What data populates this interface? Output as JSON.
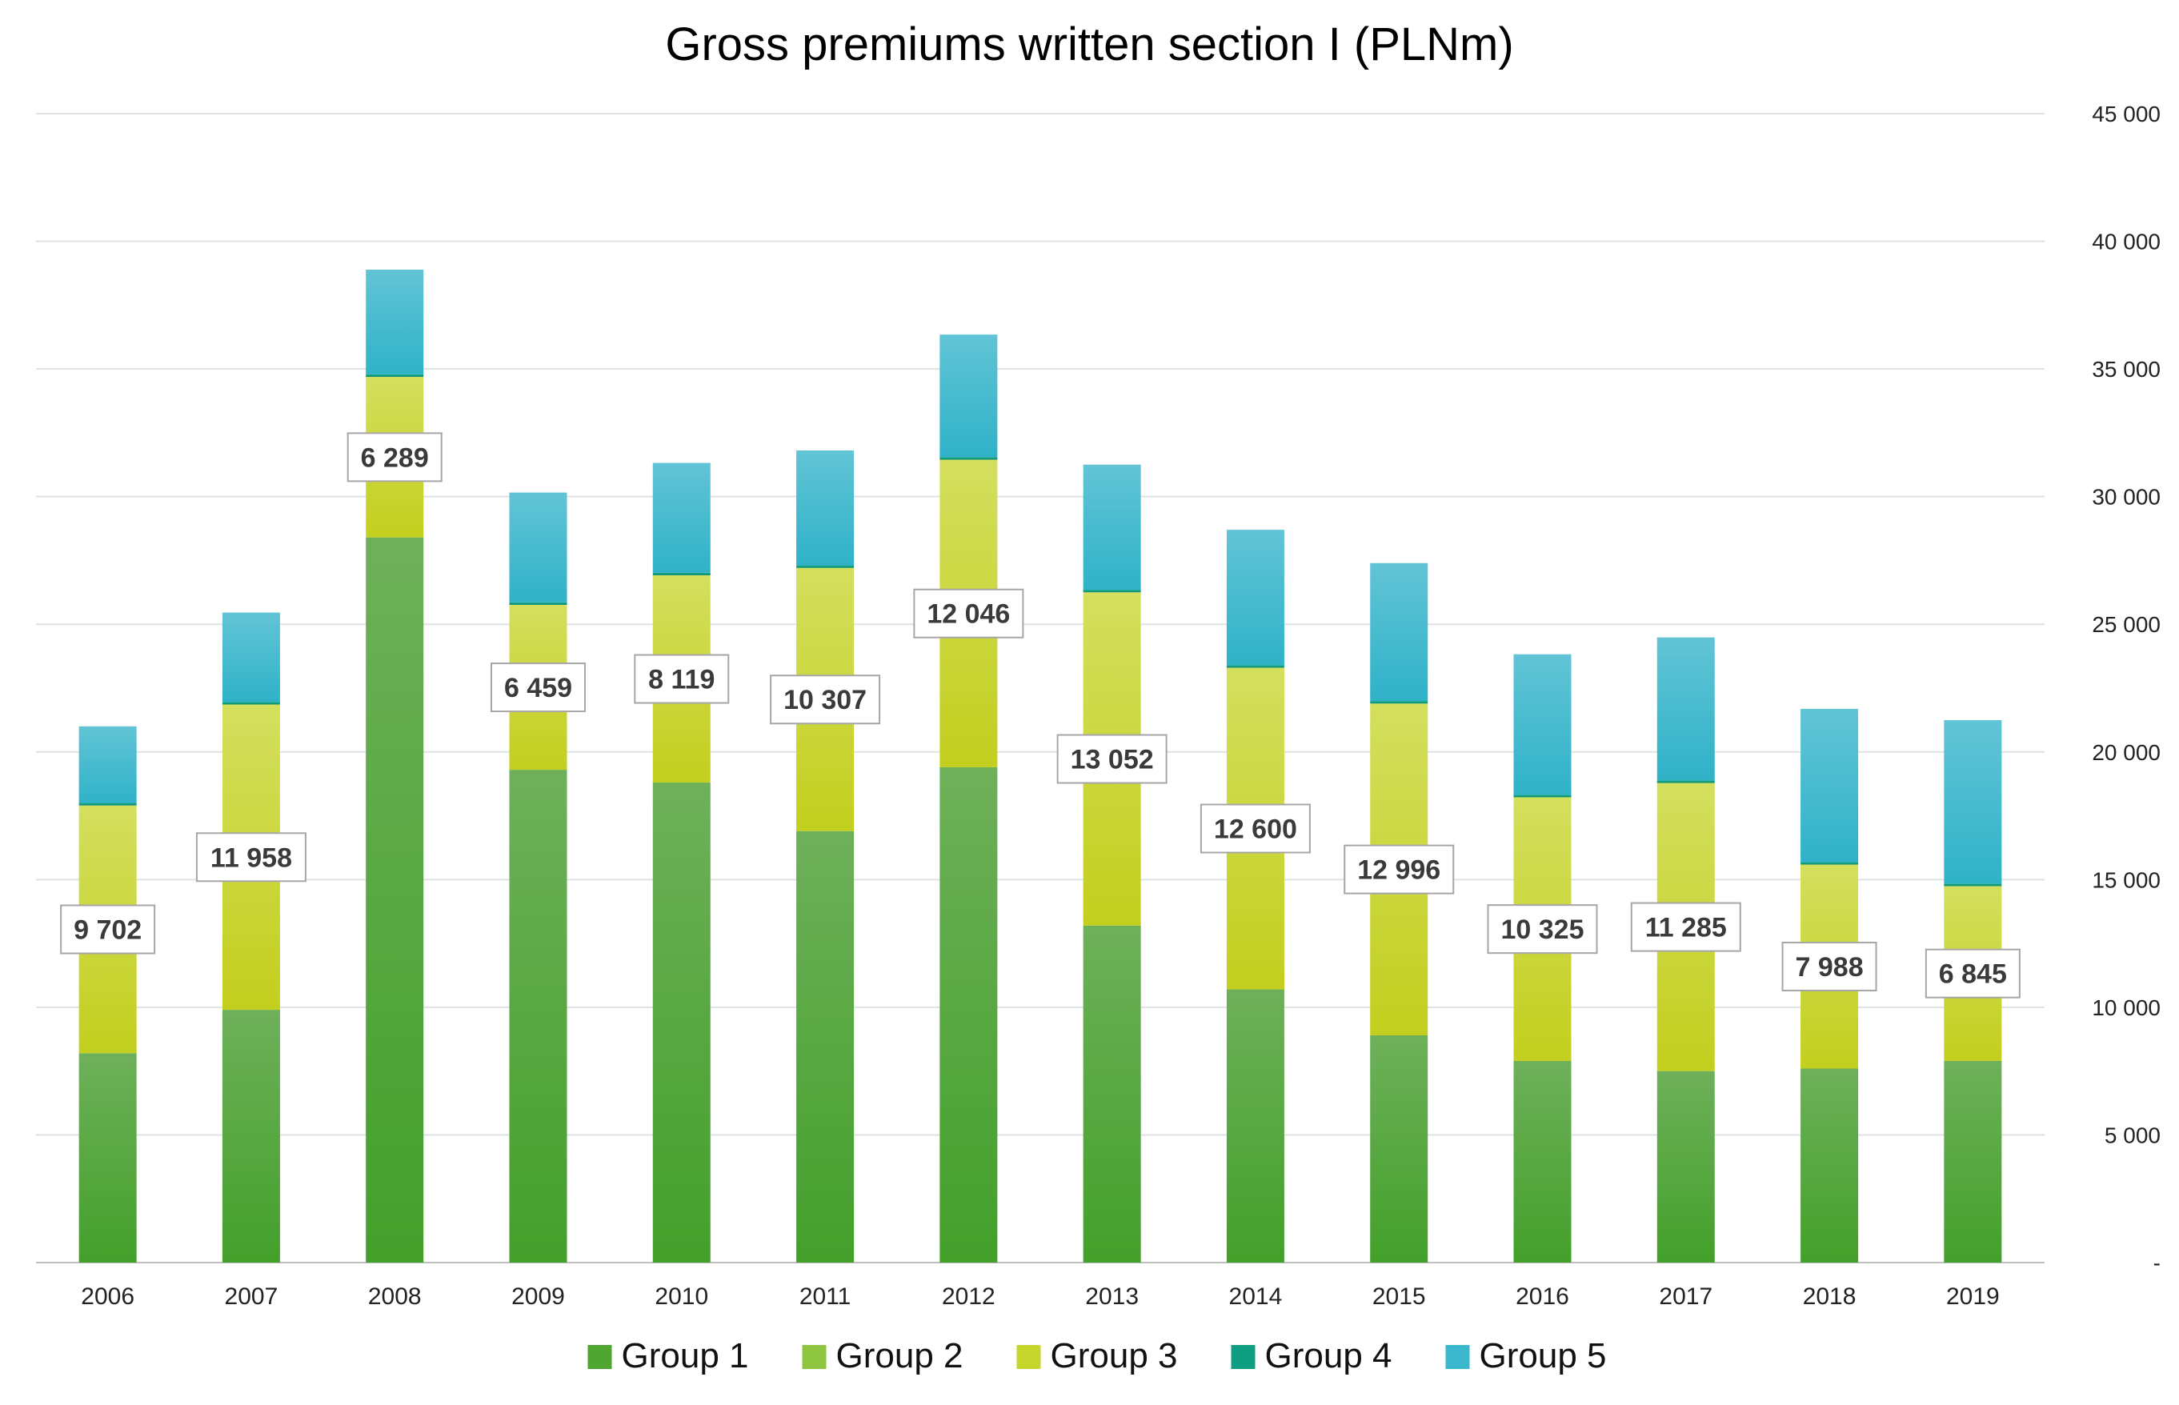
{
  "chart_data": {
    "type": "bar",
    "stacked": true,
    "title": "Gross premiums written section I (PLNm)",
    "categories": [
      "2006",
      "2007",
      "2008",
      "2009",
      "2010",
      "2011",
      "2012",
      "2013",
      "2014",
      "2015",
      "2016",
      "2017",
      "2018",
      "2019"
    ],
    "series": [
      {
        "name": "Group 1",
        "color": "#4ea52f",
        "values": [
          8200,
          9900,
          28400,
          19300,
          18800,
          16900,
          19400,
          13200,
          10700,
          8900,
          7900,
          7500,
          7600,
          7900
        ]
      },
      {
        "name": "Group 2",
        "color": "#8ec63f",
        "values": [
          0,
          0,
          0,
          0,
          0,
          0,
          0,
          0,
          0,
          0,
          0,
          0,
          0,
          0
        ]
      },
      {
        "name": "Group 3",
        "color": "#c6d62c",
        "values": [
          9702,
          11958,
          6289,
          6459,
          8119,
          10307,
          12046,
          13052,
          12600,
          12996,
          10325,
          11285,
          7988,
          6845
        ]
      },
      {
        "name": "Group 4",
        "color": "#0f9e81",
        "values": [
          100,
          100,
          100,
          100,
          100,
          100,
          100,
          100,
          100,
          100,
          100,
          100,
          100,
          100
        ]
      },
      {
        "name": "Group 5",
        "color": "#3ab7cc",
        "values": [
          3000,
          3500,
          4100,
          4300,
          4300,
          4500,
          4800,
          4900,
          5300,
          5400,
          5500,
          5600,
          6000,
          6400
        ]
      }
    ],
    "data_labels_series": "Group 3",
    "data_labels": [
      "9 702",
      "11 958",
      "6 289",
      "6 459",
      "8 119",
      "10 307",
      "12 046",
      "13 052",
      "12 600",
      "12 996",
      "10 325",
      "11 285",
      "7 988",
      "6 845"
    ],
    "ylim": [
      0,
      45000
    ],
    "y_ticks": [
      0,
      5000,
      10000,
      15000,
      20000,
      25000,
      30000,
      35000,
      40000,
      45000
    ],
    "y_tick_labels": [
      "-",
      "5 000",
      "10 000",
      "15 000",
      "20 000",
      "25 000",
      "30 000",
      "35 000",
      "40 000",
      "45 000"
    ],
    "y_axis_position": "right",
    "grid": true,
    "legend_position": "bottom"
  }
}
